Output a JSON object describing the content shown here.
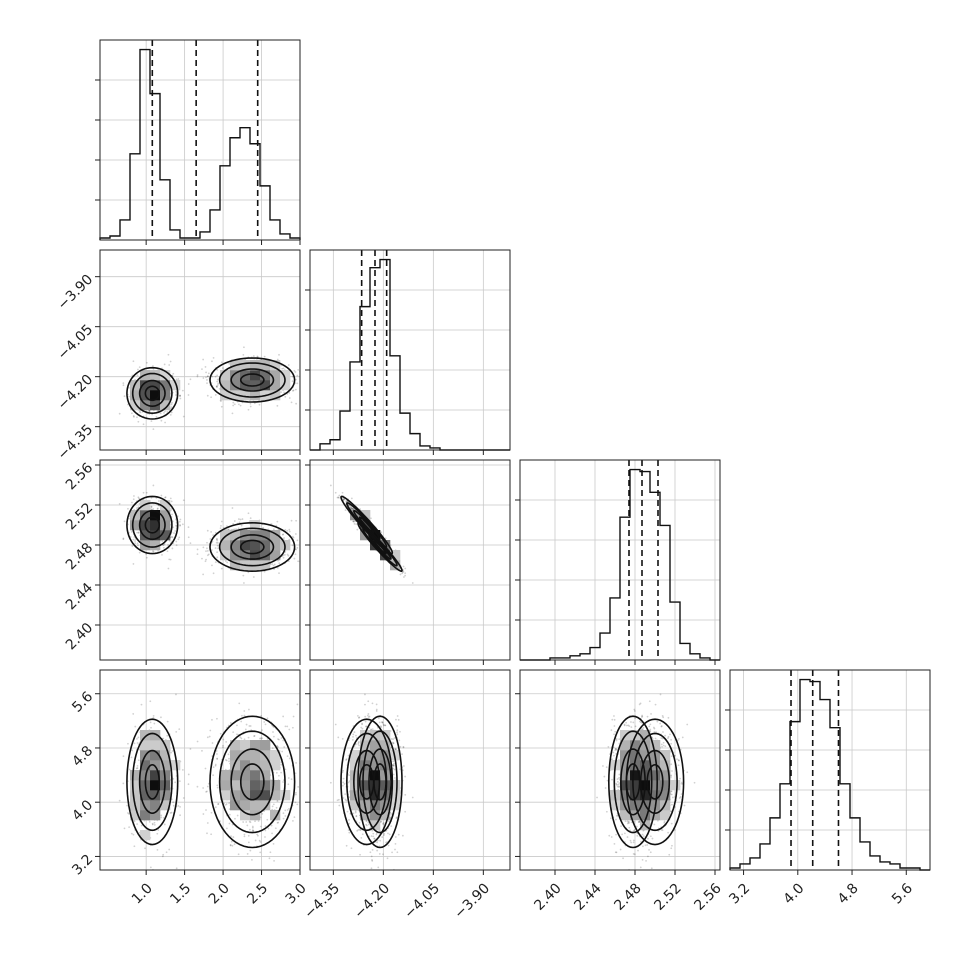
{
  "chart_data": {
    "type": "corner",
    "parameters": [
      {
        "range": [
          0.4,
          3.0
        ],
        "ticks": [
          1.0,
          1.5,
          2.0,
          2.5,
          3.0
        ],
        "tick_labels": [
          "1.0",
          "1.5",
          "2.0",
          "2.5",
          "3.0"
        ],
        "quantiles": [
          1.08,
          1.65,
          2.45
        ]
      },
      {
        "range": [
          -4.42,
          -3.82
        ],
        "ticks": [
          -4.35,
          -4.2,
          -4.05,
          -3.9
        ],
        "tick_labels": [
          "−4.35",
          "−4.20",
          "−4.05",
          "−3.90"
        ],
        "quantiles": [
          -4.265,
          -4.225,
          -4.19
        ]
      },
      {
        "range": [
          2.365,
          2.565
        ],
        "ticks": [
          2.4,
          2.44,
          2.48,
          2.52,
          2.56
        ],
        "tick_labels": [
          "2.40",
          "2.44",
          "2.48",
          "2.52",
          "2.56"
        ],
        "quantiles": [
          2.474,
          2.487,
          2.503
        ]
      },
      {
        "range": [
          3.0,
          5.95
        ],
        "ticks": [
          3.2,
          4.0,
          4.8,
          5.6
        ],
        "tick_labels": [
          "3.2",
          "4.0",
          "4.8",
          "5.6"
        ],
        "quantiles": [
          3.9,
          4.22,
          4.6
        ]
      }
    ],
    "histograms": [
      {
        "bin_edges": [
          0.4,
          0.53,
          0.66,
          0.79,
          0.92,
          1.05,
          1.18,
          1.31,
          1.44,
          1.57,
          1.7,
          1.83,
          1.96,
          2.09,
          2.22,
          2.35,
          2.48,
          2.61,
          2.74,
          2.87,
          3.0
        ],
        "counts": [
          1,
          2,
          10,
          43,
          95,
          73,
          30,
          5,
          1,
          1,
          4,
          15,
          37,
          51,
          56,
          48,
          27,
          10,
          3,
          1
        ]
      },
      {
        "bin_edges": [
          -4.42,
          -4.39,
          -4.36,
          -4.33,
          -4.3,
          -4.27,
          -4.24,
          -4.21,
          -4.18,
          -4.15,
          -4.12,
          -4.09,
          -4.06,
          -4.03,
          -4.0,
          -3.97,
          -3.94,
          -3.91,
          -3.88,
          -3.85,
          -3.82
        ],
        "counts": [
          0,
          3,
          5,
          19,
          43,
          70,
          89,
          93,
          46,
          18,
          8,
          2,
          1,
          0,
          0,
          0,
          0,
          0,
          0,
          0
        ]
      },
      {
        "bin_edges": [
          2.365,
          2.375,
          2.385,
          2.395,
          2.405,
          2.415,
          2.425,
          2.435,
          2.445,
          2.455,
          2.465,
          2.475,
          2.485,
          2.495,
          2.505,
          2.515,
          2.525,
          2.535,
          2.545,
          2.555,
          2.565
        ],
        "counts": [
          0,
          0,
          0,
          1,
          1,
          2,
          3,
          6,
          13,
          30,
          69,
          92,
          91,
          81,
          65,
          28,
          8,
          3,
          1,
          0
        ]
      },
      {
        "bin_edges": [
          3.0,
          3.1475,
          3.295,
          3.4425,
          3.59,
          3.7375,
          3.885,
          4.0325,
          4.18,
          4.3275,
          4.475,
          4.6225,
          4.77,
          4.9175,
          5.065,
          5.2125,
          5.36,
          5.5075,
          5.655,
          5.8025,
          5.95
        ],
        "counts": [
          1,
          3,
          6,
          13,
          26,
          43,
          74,
          95,
          94,
          85,
          71,
          43,
          26,
          14,
          7,
          4,
          3,
          1,
          1,
          0
        ]
      }
    ],
    "clusters": [
      {
        "p0": 1.08,
        "p1": -4.25,
        "p2": 2.5,
        "p3": 4.3,
        "s0": 0.15,
        "s1": 0.035,
        "s2": 0.013,
        "s3": 0.42,
        "weight": 0.45
      },
      {
        "p0": 2.38,
        "p1": -4.21,
        "p2": 2.478,
        "p3": 4.3,
        "s0": 0.25,
        "s1": 0.03,
        "s2": 0.011,
        "s3": 0.44,
        "weight": 0.55
      }
    ],
    "correlation_1_2": -0.97,
    "scatter_points_per_panel": 1400,
    "grid": true,
    "quantile_line_style": "dashed"
  }
}
